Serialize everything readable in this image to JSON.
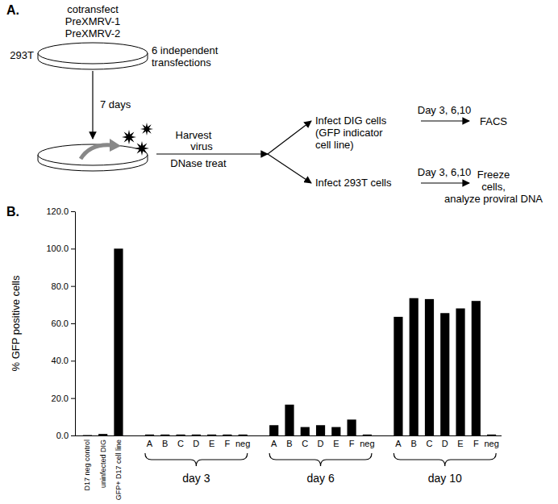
{
  "diagram": {
    "panel_label": "A.",
    "transfection": {
      "lines": [
        "cotransfect",
        "PreXMRV-1",
        "PreXMRV-2"
      ],
      "cell_line": "293T",
      "note": [
        "6 independent",
        "transfections"
      ]
    },
    "incubation": "7 days",
    "harvest": [
      "Harvest",
      "virus",
      "DNase treat"
    ],
    "branches": [
      {
        "lines": [
          "Infect DIG cells",
          "(GFP indicator",
          "cell line)"
        ],
        "timepoints": "Day 3, 6,10",
        "result": [
          "FACS"
        ]
      },
      {
        "lines": [
          "Infect 293T cells"
        ],
        "timepoints": "Day 3, 6,10",
        "result": [
          "Freeze",
          "cells,",
          "analyze proviral DNA"
        ]
      }
    ]
  },
  "chart_data": {
    "type": "bar",
    "title": "B.",
    "y_label": "% GFP positive cells",
    "categories": [
      "D17 neg control",
      "uninfected DIG",
      "GFP+ D17 cell line",
      null,
      "A",
      "B",
      "C",
      "D",
      "E",
      "F",
      "neg",
      null,
      "A",
      "B",
      "C",
      "D",
      "E",
      "F",
      "neg",
      null,
      "A",
      "B",
      "C",
      "D",
      "E",
      "F",
      "neg"
    ],
    "values": [
      0.2,
      0.8,
      100,
      null,
      0.5,
      0.5,
      0.5,
      0.5,
      0.5,
      0.5,
      0.5,
      null,
      5.5,
      16.5,
      4.5,
      5.5,
      4.5,
      8.5,
      0.5,
      null,
      63.5,
      73.5,
      73,
      65.5,
      68,
      72,
      0.5
    ],
    "annotations": [
      "day 3",
      "day 6",
      "day 10"
    ],
    "color": "#000000",
    "ylim": [
      0,
      120
    ],
    "yticks": [
      {
        "value": 0,
        "label": "0.0"
      },
      {
        "value": 20,
        "label": "20.0"
      },
      {
        "value": 40,
        "label": "40.0"
      },
      {
        "value": 60,
        "label": "60.0"
      },
      {
        "value": 80,
        "label": "80.0"
      },
      {
        "value": 100,
        "label": "100.0"
      },
      {
        "value": 120,
        "label": "120.0"
      }
    ],
    "grid": false
  }
}
